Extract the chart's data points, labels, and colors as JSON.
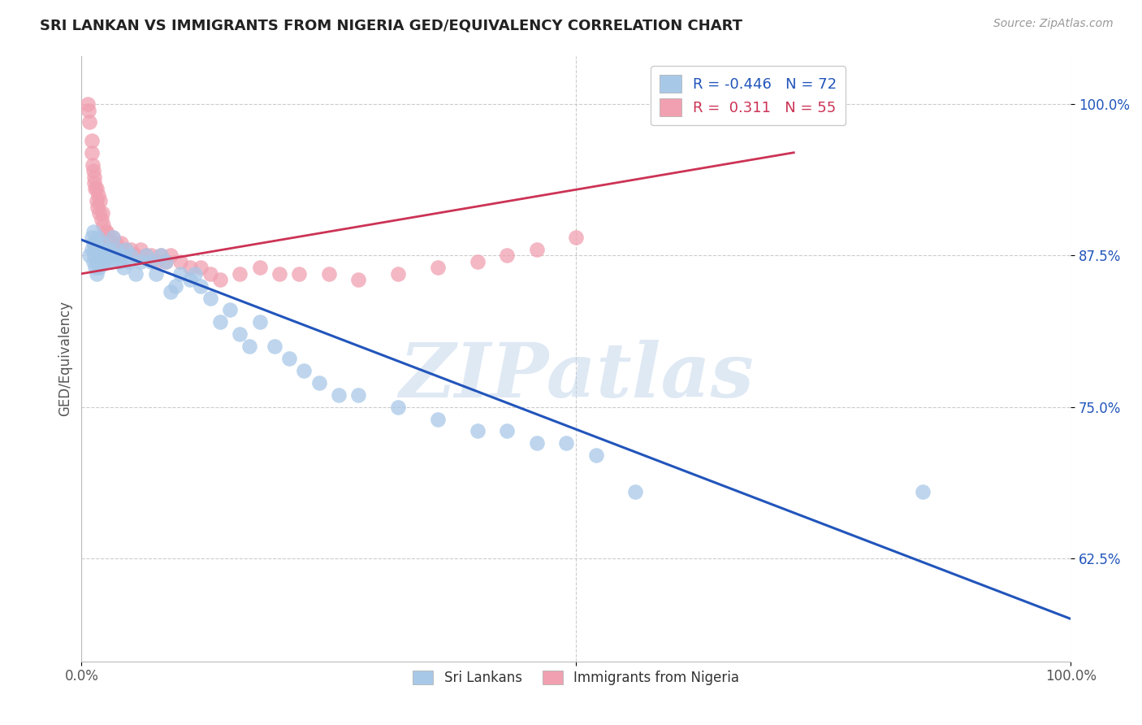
{
  "title": "SRI LANKAN VS IMMIGRANTS FROM NIGERIA GED/EQUIVALENCY CORRELATION CHART",
  "source": "Source: ZipAtlas.com",
  "ylabel": "GED/Equivalency",
  "xlim": [
    0.0,
    1.0
  ],
  "ylim": [
    0.54,
    1.04
  ],
  "yticks": [
    0.625,
    0.75,
    0.875,
    1.0
  ],
  "ytick_labels": [
    "62.5%",
    "75.0%",
    "87.5%",
    "100.0%"
  ],
  "xticks": [
    0.0,
    0.5,
    1.0
  ],
  "xtick_labels": [
    "0.0%",
    "",
    "100.0%"
  ],
  "blue_R": -0.446,
  "blue_N": 72,
  "pink_R": 0.311,
  "pink_N": 55,
  "blue_color": "#a8c8e8",
  "pink_color": "#f0a0b0",
  "blue_line_color": "#2255bb",
  "pink_line_color": "#cc3355",
  "legend_blue_label": "Sri Lankans",
  "legend_pink_label": "Immigrants from Nigeria",
  "watermark": "ZIPatlas",
  "blue_scatter_x": [
    0.008,
    0.01,
    0.01,
    0.012,
    0.012,
    0.012,
    0.013,
    0.013,
    0.014,
    0.014,
    0.015,
    0.015,
    0.015,
    0.016,
    0.016,
    0.017,
    0.017,
    0.018,
    0.018,
    0.019,
    0.02,
    0.021,
    0.022,
    0.023,
    0.024,
    0.025,
    0.026,
    0.028,
    0.03,
    0.032,
    0.034,
    0.036,
    0.038,
    0.04,
    0.042,
    0.045,
    0.048,
    0.05,
    0.055,
    0.06,
    0.065,
    0.07,
    0.075,
    0.08,
    0.085,
    0.09,
    0.095,
    0.1,
    0.11,
    0.115,
    0.12,
    0.13,
    0.14,
    0.15,
    0.16,
    0.17,
    0.18,
    0.195,
    0.21,
    0.225,
    0.24,
    0.26,
    0.28,
    0.32,
    0.36,
    0.4,
    0.43,
    0.46,
    0.49,
    0.52,
    0.56,
    0.85
  ],
  "blue_scatter_y": [
    0.875,
    0.88,
    0.89,
    0.87,
    0.885,
    0.895,
    0.875,
    0.885,
    0.865,
    0.88,
    0.86,
    0.87,
    0.88,
    0.875,
    0.89,
    0.87,
    0.88,
    0.865,
    0.875,
    0.87,
    0.875,
    0.885,
    0.87,
    0.875,
    0.88,
    0.87,
    0.875,
    0.88,
    0.87,
    0.89,
    0.875,
    0.88,
    0.87,
    0.875,
    0.865,
    0.88,
    0.87,
    0.875,
    0.86,
    0.87,
    0.875,
    0.87,
    0.86,
    0.875,
    0.87,
    0.845,
    0.85,
    0.86,
    0.855,
    0.86,
    0.85,
    0.84,
    0.82,
    0.83,
    0.81,
    0.8,
    0.82,
    0.8,
    0.79,
    0.78,
    0.77,
    0.76,
    0.76,
    0.75,
    0.74,
    0.73,
    0.73,
    0.72,
    0.72,
    0.71,
    0.68,
    0.68
  ],
  "pink_scatter_x": [
    0.006,
    0.007,
    0.008,
    0.01,
    0.01,
    0.011,
    0.012,
    0.013,
    0.013,
    0.014,
    0.015,
    0.015,
    0.016,
    0.017,
    0.018,
    0.019,
    0.02,
    0.021,
    0.022,
    0.024,
    0.025,
    0.026,
    0.028,
    0.03,
    0.032,
    0.035,
    0.038,
    0.04,
    0.045,
    0.05,
    0.055,
    0.06,
    0.065,
    0.07,
    0.075,
    0.08,
    0.085,
    0.09,
    0.1,
    0.11,
    0.12,
    0.13,
    0.14,
    0.16,
    0.18,
    0.2,
    0.22,
    0.25,
    0.28,
    0.32,
    0.36,
    0.4,
    0.43,
    0.46,
    0.5
  ],
  "pink_scatter_y": [
    1.0,
    0.995,
    0.985,
    0.96,
    0.97,
    0.95,
    0.945,
    0.935,
    0.94,
    0.93,
    0.92,
    0.93,
    0.915,
    0.925,
    0.91,
    0.92,
    0.905,
    0.91,
    0.9,
    0.895,
    0.895,
    0.89,
    0.89,
    0.885,
    0.89,
    0.885,
    0.88,
    0.885,
    0.88,
    0.88,
    0.875,
    0.88,
    0.875,
    0.875,
    0.87,
    0.875,
    0.87,
    0.875,
    0.87,
    0.865,
    0.865,
    0.86,
    0.855,
    0.86,
    0.865,
    0.86,
    0.86,
    0.86,
    0.855,
    0.86,
    0.865,
    0.87,
    0.875,
    0.88,
    0.89
  ],
  "blue_line_x": [
    0.0,
    1.0
  ],
  "blue_line_y": [
    0.888,
    0.575
  ],
  "pink_line_x": [
    0.0,
    0.72
  ],
  "pink_line_y": [
    0.86,
    0.96
  ]
}
